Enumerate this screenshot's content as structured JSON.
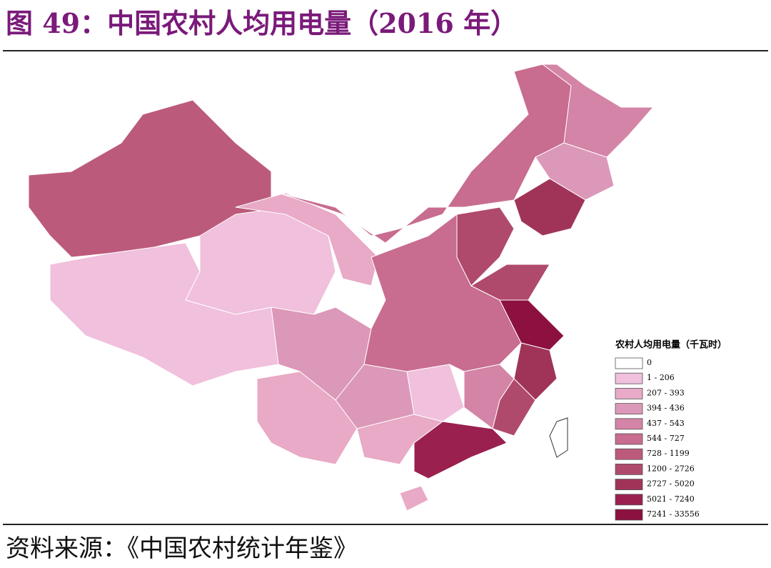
{
  "header": {
    "title": "图 49：中国农村人均用电量（2016 年）"
  },
  "legend": {
    "title": "农村人均用电量（千瓦时）",
    "items": [
      {
        "label": "0",
        "color": "#ffffff"
      },
      {
        "label": "1 - 206",
        "color": "#f0c0dc"
      },
      {
        "label": "207 - 393",
        "color": "#e8aac6"
      },
      {
        "label": "394 - 436",
        "color": "#dc98b8"
      },
      {
        "label": "437 - 543",
        "color": "#d484a6"
      },
      {
        "label": "544 - 727",
        "color": "#c86c90"
      },
      {
        "label": "728 - 1199",
        "color": "#bc5a7c"
      },
      {
        "label": "1200 - 2726",
        "color": "#b04a6c"
      },
      {
        "label": "2727 - 5020",
        "color": "#a03458"
      },
      {
        "label": "5021 - 7240",
        "color": "#9a2050"
      },
      {
        "label": "7241 - 33556",
        "color": "#8c1040"
      }
    ]
  },
  "footer": {
    "source": "资料来源：《中国农村统计年鉴》"
  }
}
